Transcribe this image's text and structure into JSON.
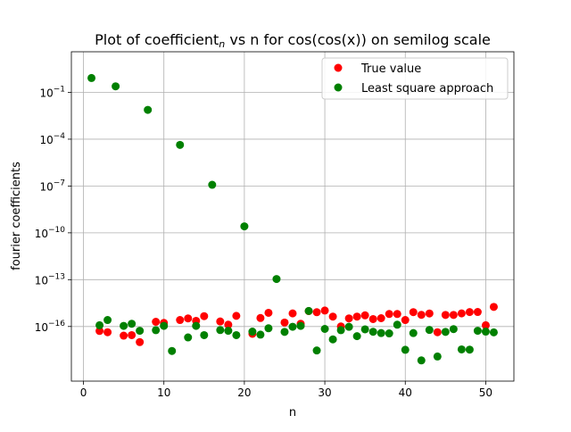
{
  "chart_data": {
    "type": "scatter",
    "title_main": "Plot of coefficient",
    "title_sub": "n",
    "title_rest": " vs n for cos(cos(x)) on semilog scale",
    "xlabel": "n",
    "ylabel": "fourier coefficients",
    "xlim": [
      -1.5,
      53.5
    ],
    "ylim_log10": [
      -19.5,
      1.6
    ],
    "yscale": "log",
    "grid": true,
    "legend_position": "upper right",
    "x_ticks": [
      0,
      10,
      20,
      30,
      40,
      50
    ],
    "y_ticks": [
      {
        "exp": -1,
        "base": "10",
        "sup": "−1"
      },
      {
        "exp": -4,
        "base": "10",
        "sup": "−4"
      },
      {
        "exp": -7,
        "base": "10",
        "sup": "−7"
      },
      {
        "exp": -10,
        "base": "10",
        "sup": "−10"
      },
      {
        "exp": -13,
        "base": "10",
        "sup": "−13"
      },
      {
        "exp": -16,
        "base": "10",
        "sup": "−16"
      }
    ],
    "series": [
      {
        "name": "True value",
        "color": "#ff0000",
        "points": [
          [
            2,
            5.2e-17
          ],
          [
            3,
            4.3e-17
          ],
          [
            5,
            2.6e-17
          ],
          [
            6,
            2.8e-17
          ],
          [
            7,
            1e-17
          ],
          [
            9,
            2e-16
          ],
          [
            10,
            1.7e-16
          ],
          [
            12,
            2.6e-16
          ],
          [
            13,
            3.3e-16
          ],
          [
            14,
            2.3e-16
          ],
          [
            15,
            4.6e-16
          ],
          [
            17,
            2.1e-16
          ],
          [
            18,
            1.3e-16
          ],
          [
            19,
            4.8e-16
          ],
          [
            21,
            3.4e-17
          ],
          [
            22,
            3.5e-16
          ],
          [
            23,
            7.5e-16
          ],
          [
            25,
            1.8e-16
          ],
          [
            26,
            6.9e-16
          ],
          [
            27,
            1.5e-16
          ],
          [
            28,
            9.7e-16
          ],
          [
            29,
            8.2e-16
          ],
          [
            30,
            1.05e-15
          ],
          [
            31,
            4.3e-16
          ],
          [
            32,
            1e-16
          ],
          [
            33,
            3.3e-16
          ],
          [
            34,
            4.3e-16
          ],
          [
            35,
            5.2e-16
          ],
          [
            36,
            3e-16
          ],
          [
            37,
            3.4e-16
          ],
          [
            38,
            6.3e-16
          ],
          [
            39,
            6.3e-16
          ],
          [
            40,
            2.6e-16
          ],
          [
            41,
            8.3e-16
          ],
          [
            42,
            5.6e-16
          ],
          [
            43,
            6.8e-16
          ],
          [
            44,
            4.3e-17
          ],
          [
            45,
            5.5e-16
          ],
          [
            46,
            5.5e-16
          ],
          [
            47,
            6.9e-16
          ],
          [
            48,
            8.4e-16
          ],
          [
            49,
            8.5e-16
          ],
          [
            50,
            1.2e-16
          ],
          [
            51,
            1.8e-15
          ]
        ]
      },
      {
        "name": "Least square approach",
        "color": "#008000",
        "points": [
          [
            1,
            0.83
          ],
          [
            2,
            1.2e-16
          ],
          [
            3,
            2.6e-16
          ],
          [
            4,
            0.243
          ],
          [
            5,
            1.1e-16
          ],
          [
            6,
            1.5e-16
          ],
          [
            7,
            5.3e-17
          ],
          [
            8,
            0.00757
          ],
          [
            9,
            5.8e-17
          ],
          [
            10,
            1.1e-16
          ],
          [
            11,
            2.7e-18
          ],
          [
            12,
            4.3e-05
          ],
          [
            13,
            2e-17
          ],
          [
            14,
            1.1e-16
          ],
          [
            15,
            2.8e-17
          ],
          [
            16,
            1.2e-07
          ],
          [
            17,
            5.9e-17
          ],
          [
            18,
            5.3e-17
          ],
          [
            19,
            2.8e-17
          ],
          [
            20,
            2.6e-10
          ],
          [
            21,
            4.7e-17
          ],
          [
            22,
            3e-17
          ],
          [
            23,
            7.7e-17
          ],
          [
            24,
            1.1e-13
          ],
          [
            25,
            4.5e-17
          ],
          [
            26,
            9.6e-17
          ],
          [
            27,
            1.1e-16
          ],
          [
            28,
            9.9e-16
          ],
          [
            29,
            2.9e-18
          ],
          [
            30,
            7e-17
          ],
          [
            31,
            1.5e-17
          ],
          [
            32,
            5.8e-17
          ],
          [
            33,
            9.5e-17
          ],
          [
            34,
            2.4e-17
          ],
          [
            35,
            6.6e-17
          ],
          [
            36,
            4.6e-17
          ],
          [
            37,
            3.8e-17
          ],
          [
            38,
            3.6e-17
          ],
          [
            39,
            1.3e-16
          ],
          [
            40,
            3.2e-18
          ],
          [
            41,
            3.8e-17
          ],
          [
            42,
            6.7e-19
          ],
          [
            43,
            6e-17
          ],
          [
            44,
            1.2e-18
          ],
          [
            45,
            4.5e-17
          ],
          [
            46,
            6.8e-17
          ],
          [
            47,
            3.4e-18
          ],
          [
            48,
            3.3e-18
          ],
          [
            49,
            5.3e-17
          ],
          [
            50,
            4.7e-17
          ],
          [
            51,
            4.2e-17
          ]
        ]
      }
    ]
  }
}
